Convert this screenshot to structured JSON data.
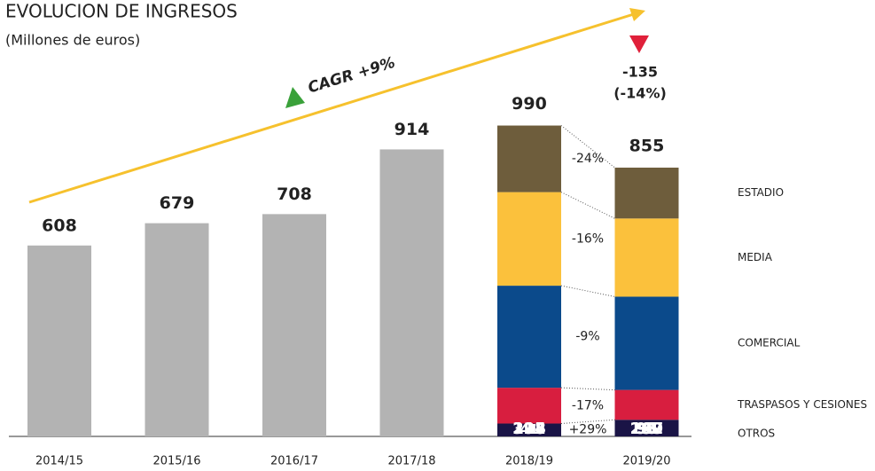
{
  "chart_data": {
    "type": "stacked_bar",
    "title": "EVOLUCION DE INGRESOS",
    "subtitle": "(Millones de euros)",
    "categories": [
      "2014/15",
      "2015/16",
      "2016/17",
      "2017/18",
      "2018/19",
      "2019/20"
    ],
    "series": [
      {
        "color": "#b3b3b3",
        "values": [
          608,
          679,
          708,
          914,
          null,
          null
        ]
      },
      {
        "name": "OTROS",
        "color": "#1a1446",
        "values": [
          null,
          null,
          null,
          null,
          41,
          53
        ],
        "change": "+29%"
      },
      {
        "name": "TRASPASOS Y CESIONES",
        "color": "#d81e3f",
        "values": [
          null,
          null,
          null,
          null,
          114,
          95
        ],
        "change": "-17%"
      },
      {
        "name": "COMERCIAL",
        "color": "#0b4a8b",
        "values": [
          null,
          null,
          null,
          null,
          325,
          297
        ],
        "change": "-9%"
      },
      {
        "name": "MEDIA",
        "color": "#fbc13c",
        "values": [
          null,
          null,
          null,
          null,
          298,
          249
        ],
        "change": "-16%"
      },
      {
        "name": "ESTADIO",
        "color": "#6e5d3c",
        "values": [
          null,
          null,
          null,
          null,
          212,
          162
        ],
        "change": "-24%"
      }
    ],
    "totals": [
      null,
      null,
      null,
      null,
      990,
      855
    ],
    "annotations": {
      "cagr": "CAGR +9%",
      "drop": "-135",
      "drop_pct": "(-14%)"
    }
  }
}
